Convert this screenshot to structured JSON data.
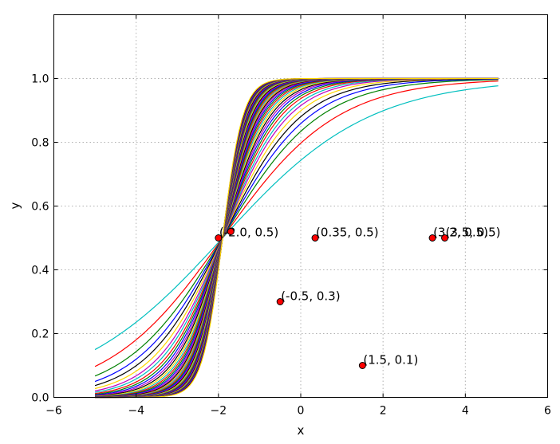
{
  "chart_data": {
    "type": "line",
    "xlabel": "x",
    "ylabel": "y",
    "xlim": [
      -6,
      6
    ],
    "ylim": [
      0.0,
      1.2
    ],
    "xticks": [
      -6,
      -4,
      -2,
      0,
      2,
      4,
      6
    ],
    "xtick_labels": [
      "−6",
      "−4",
      "−2",
      "0",
      "2",
      "4",
      "6"
    ],
    "yticks": [
      0.0,
      0.2,
      0.4,
      0.6,
      0.8,
      1.0
    ],
    "ytick_labels": [
      "0.0",
      "0.2",
      "0.4",
      "0.6",
      "0.8",
      "1.0"
    ],
    "grid": true,
    "curve_family": {
      "function": "sigmoid",
      "center": -1.9,
      "x_range": [
        -5.0,
        4.8
      ],
      "slopes": [
        0.56,
        0.72,
        0.85,
        0.95,
        1.05,
        1.15,
        1.25,
        1.33,
        1.42,
        1.5,
        1.58,
        1.66,
        1.74,
        1.82,
        1.9,
        1.98,
        2.06,
        2.14,
        2.22,
        2.3,
        2.38,
        2.46,
        2.54,
        2.62,
        2.7,
        2.78,
        2.86,
        2.94,
        3.02,
        3.1,
        3.18,
        3.26,
        3.34,
        3.42,
        3.5,
        3.58,
        3.66,
        3.74,
        3.82,
        3.9,
        3.98,
        4.06
      ],
      "colors": [
        "#00bfbf",
        "#ff0000",
        "#008000",
        "#0000ff",
        "#000000",
        "#ffd700",
        "#bf00bf",
        "#00bfbf",
        "#ff0000",
        "#008000",
        "#0000ff",
        "#bf00bf",
        "#000000",
        "#ffd700",
        "#00bfbf",
        "#ff0000",
        "#008000",
        "#0000ff",
        "#bf00bf",
        "#000000",
        "#ff8c00",
        "#00bfbf",
        "#ff0000",
        "#008000",
        "#0000ff",
        "#bf00bf",
        "#000000",
        "#ffd700",
        "#00bfbf",
        "#ff0000",
        "#008000",
        "#0000ff",
        "#bf00bf",
        "#000000",
        "#ff8c00",
        "#00bfbf",
        "#ff0000",
        "#008000",
        "#0000ff",
        "#bf00bf",
        "#000000",
        "#ffd700"
      ]
    },
    "points": [
      {
        "x": -2.0,
        "y": 0.5,
        "label": "(-2.0, 0.5)"
      },
      {
        "x": -1.7,
        "y": 0.52,
        "label": ""
      },
      {
        "x": 0.35,
        "y": 0.5,
        "label": "(0.35, 0.5)"
      },
      {
        "x": -0.5,
        "y": 0.3,
        "label": "(-0.5, 0.3)"
      },
      {
        "x": 1.5,
        "y": 0.1,
        "label": "(1.5, 0.1)"
      },
      {
        "x": 3.2,
        "y": 0.5,
        "label": "(3.2, 0.5)"
      },
      {
        "x": 3.5,
        "y": 0.5,
        "label": "(3.5, 0.5)"
      }
    ],
    "point_color": "#ff0000"
  }
}
